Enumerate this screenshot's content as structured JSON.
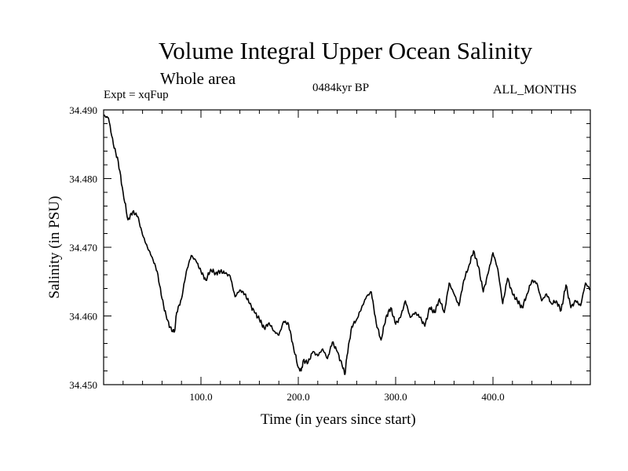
{
  "chart_data": {
    "type": "line",
    "title": "Volume Integral Upper Ocean Salinity",
    "subtitle": "Whole area",
    "experiment": "Expt = xqFup",
    "period": "0484kyr BP",
    "months": "ALL_MONTHS",
    "xlabel": "Time (in years since start)",
    "ylabel": "Salinity (in PSU)",
    "xlim": [
      0,
      500
    ],
    "ylim": [
      34.45,
      34.49
    ],
    "xticks": [
      100,
      200,
      300,
      400
    ],
    "xtick_labels": [
      "100.0",
      "200.0",
      "300.0",
      "400.0"
    ],
    "yticks": [
      34.45,
      34.46,
      34.47,
      34.48,
      34.49
    ],
    "ytick_labels": [
      "34.450",
      "34.460",
      "34.470",
      "34.480",
      "34.490"
    ],
    "series": [
      {
        "name": "Salinity",
        "x": [
          0,
          5,
          10,
          15,
          20,
          25,
          30,
          35,
          40,
          45,
          50,
          55,
          60,
          65,
          70,
          73,
          75,
          80,
          85,
          90,
          95,
          100,
          105,
          110,
          115,
          120,
          125,
          130,
          135,
          140,
          145,
          150,
          155,
          160,
          165,
          170,
          175,
          180,
          185,
          190,
          195,
          200,
          203,
          205,
          210,
          215,
          220,
          225,
          230,
          235,
          240,
          245,
          248,
          250,
          255,
          260,
          265,
          270,
          275,
          280,
          285,
          290,
          295,
          300,
          305,
          310,
          315,
          320,
          325,
          330,
          335,
          340,
          345,
          350,
          355,
          360,
          365,
          370,
          375,
          380,
          385,
          390,
          395,
          400,
          405,
          410,
          415,
          420,
          425,
          430,
          435,
          440,
          445,
          450,
          455,
          460,
          465,
          470,
          475,
          480,
          485,
          490,
          495,
          500
        ],
        "y": [
          34.4892,
          34.4888,
          34.485,
          34.4825,
          34.478,
          34.474,
          34.4752,
          34.4745,
          34.4718,
          34.47,
          34.4685,
          34.4665,
          34.4625,
          34.4595,
          34.4578,
          34.4578,
          34.4605,
          34.4625,
          34.4665,
          34.4688,
          34.468,
          34.4665,
          34.4652,
          34.4668,
          34.4662,
          34.4665,
          34.4662,
          34.4658,
          34.4628,
          34.4638,
          34.4632,
          34.4618,
          34.4605,
          34.4595,
          34.4582,
          34.459,
          34.4578,
          34.4572,
          34.4592,
          34.4588,
          34.4555,
          34.4525,
          34.452,
          34.4535,
          34.4532,
          34.4548,
          34.4542,
          34.4552,
          34.4538,
          34.4562,
          34.4548,
          34.4528,
          34.4515,
          34.4542,
          34.4585,
          34.4595,
          34.4612,
          34.4628,
          34.4635,
          34.459,
          34.4565,
          34.4598,
          34.4612,
          34.4588,
          34.4598,
          34.4622,
          34.4598,
          34.4605,
          34.4598,
          34.4585,
          34.4612,
          34.4605,
          34.4625,
          34.4605,
          34.4648,
          34.4632,
          34.4615,
          34.4652,
          34.4672,
          34.4695,
          34.4672,
          34.4635,
          34.4662,
          34.4692,
          34.4668,
          34.4618,
          34.4655,
          34.4632,
          34.4622,
          34.4612,
          34.4632,
          34.4652,
          34.4648,
          34.4622,
          34.4632,
          34.4618,
          34.4622,
          34.4608,
          34.4645,
          34.4612,
          34.4622,
          34.4615,
          34.4648,
          34.4638
        ]
      }
    ]
  }
}
